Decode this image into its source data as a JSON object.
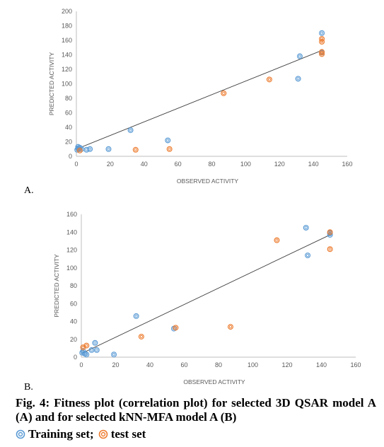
{
  "chart_data": [
    {
      "type": "scatter",
      "panel_label": "A.",
      "xlabel": "OBSERVED ACTIVITY",
      "ylabel": "PREDICTED ACTIVITY",
      "xlim": [
        0,
        160
      ],
      "ylim": [
        0,
        200
      ],
      "xticks": [
        0,
        20,
        40,
        60,
        80,
        100,
        120,
        140,
        160
      ],
      "yticks": [
        0,
        20,
        40,
        60,
        80,
        100,
        120,
        140,
        160,
        180,
        200
      ],
      "trendline": {
        "x": [
          0,
          145
        ],
        "y": [
          10,
          146
        ]
      },
      "series": [
        {
          "name": "Training set",
          "color": "#5b9bd5",
          "points": [
            [
              0.5,
              9
            ],
            [
              1,
              11
            ],
            [
              1,
              13
            ],
            [
              1.5,
              10
            ],
            [
              2,
              12
            ],
            [
              3,
              10
            ],
            [
              6,
              9
            ],
            [
              8,
              10
            ],
            [
              19,
              10
            ],
            [
              32,
              36
            ],
            [
              54,
              22
            ],
            [
              131,
              107
            ],
            [
              132,
              138
            ],
            [
              145,
              170
            ],
            [
              145,
              143
            ]
          ]
        },
        {
          "name": "test set",
          "color": "#ed7d31",
          "points": [
            [
              2,
              8
            ],
            [
              35,
              9
            ],
            [
              55,
              10
            ],
            [
              87,
              87
            ],
            [
              114,
              106
            ],
            [
              145,
              162
            ],
            [
              145,
              158
            ],
            [
              145,
              141
            ],
            [
              145,
              144
            ]
          ]
        }
      ]
    },
    {
      "type": "scatter",
      "panel_label": "B.",
      "xlabel": "OBSERVED ACTIVITY",
      "ylabel": "PREDICTED ACTIVITY",
      "xlim": [
        0,
        160
      ],
      "ylim": [
        0,
        160
      ],
      "xticks": [
        0,
        20,
        40,
        60,
        80,
        100,
        120,
        140,
        160
      ],
      "yticks": [
        0,
        20,
        40,
        60,
        80,
        100,
        120,
        140,
        160
      ],
      "trendline": {
        "x": [
          0,
          145
        ],
        "y": [
          4,
          137
        ]
      },
      "series": [
        {
          "name": "Training set",
          "color": "#5b9bd5",
          "points": [
            [
              0.5,
              5
            ],
            [
              1,
              7
            ],
            [
              2,
              4
            ],
            [
              3,
              3
            ],
            [
              6,
              8
            ],
            [
              8,
              16
            ],
            [
              9,
              8
            ],
            [
              19,
              3
            ],
            [
              32,
              46
            ],
            [
              54,
              32
            ],
            [
              131,
              145
            ],
            [
              132,
              114
            ],
            [
              145,
              137
            ],
            [
              145,
              139
            ]
          ]
        },
        {
          "name": "test set",
          "color": "#ed7d31",
          "points": [
            [
              1,
              11
            ],
            [
              3,
              13
            ],
            [
              35,
              23
            ],
            [
              55,
              33
            ],
            [
              87,
              34
            ],
            [
              114,
              131
            ],
            [
              145,
              121
            ],
            [
              145,
              140
            ]
          ]
        }
      ]
    }
  ],
  "caption": "Fig. 4: Fitness plot (correlation plot) for selected 3D QSAR model A (A) and for selected kNN-MFA model A (B)",
  "legend": {
    "training_label": "Training set;",
    "test_label": "test set"
  }
}
